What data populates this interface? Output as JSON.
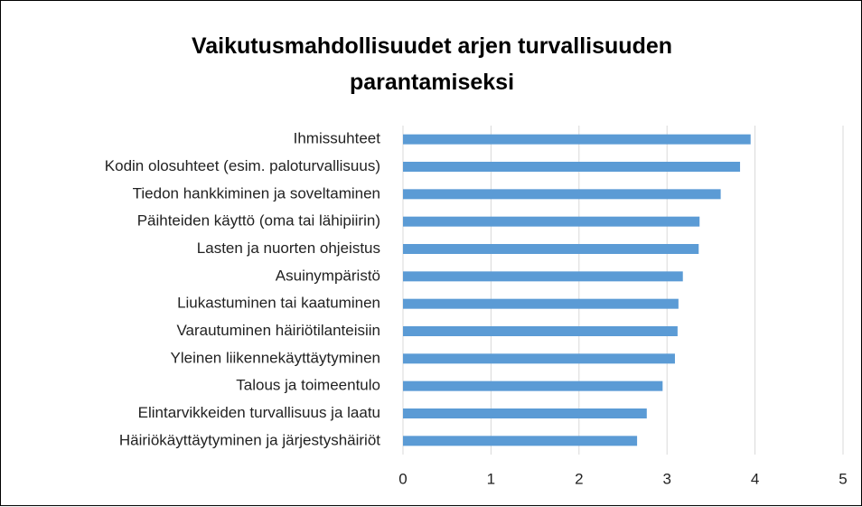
{
  "chart_data": {
    "type": "bar",
    "orientation": "horizontal",
    "title": "Vaikutusmahdollisuudet arjen turvallisuuden parantamiseksi",
    "categories": [
      "Ihmissuhteet",
      "Kodin olosuhteet (esim. paloturvallisuus)",
      "Tiedon hankkiminen ja soveltaminen",
      "Päihteiden käyttö (oma tai lähipiirin)",
      "Lasten ja nuorten ohjeistus",
      "Asuinympäristö",
      "Liukastuminen tai kaatuminen",
      "Varautuminen häiriötilanteisiin",
      "Yleinen liikennekäyttäytyminen",
      "Talous ja toimeentulo",
      "Elintarvikkeiden turvallisuus ja laatu",
      "Häiriökäyttäytyminen ja järjestyshäiriöt"
    ],
    "values": [
      3.95,
      3.83,
      3.61,
      3.37,
      3.36,
      3.18,
      3.13,
      3.12,
      3.09,
      2.95,
      2.77,
      2.66
    ],
    "color": "#5b9bd5",
    "xlim": [
      0,
      5
    ],
    "xticks": [
      0,
      1,
      2,
      3,
      4,
      5
    ],
    "grid": true
  }
}
